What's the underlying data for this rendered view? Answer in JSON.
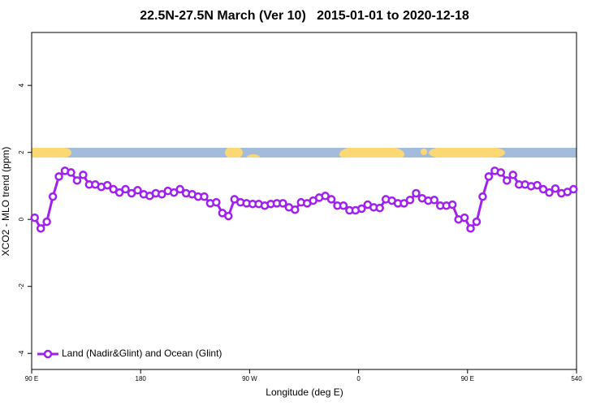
{
  "chart_data": {
    "type": "line",
    "title": "22.5N-27.5N March (Ver 10)   2015-01-01 to 2020-12-18",
    "xlabel": "Longitude (deg E)",
    "ylabel": "XCO2 - MLO trend (ppm)",
    "x": [
      92.5,
      97.5,
      102.5,
      107.5,
      112.5,
      117.5,
      122.5,
      127.5,
      132.5,
      137.5,
      142.5,
      147.5,
      152.5,
      157.5,
      162.5,
      167.5,
      172.5,
      177.5,
      182.5,
      187.5,
      192.5,
      197.5,
      202.5,
      207.5,
      212.5,
      217.5,
      222.5,
      227.5,
      232.5,
      237.5,
      242.5,
      247.5,
      252.5,
      257.5,
      262.5,
      267.5,
      272.5,
      277.5,
      282.5,
      287.5,
      292.5,
      297.5,
      302.5,
      307.5,
      312.5,
      317.5,
      322.5,
      327.5,
      332.5,
      337.5,
      342.5,
      347.5,
      352.5,
      357.5,
      362.5,
      367.5,
      372.5,
      377.5,
      382.5,
      387.5,
      392.5,
      397.5,
      402.5,
      407.5,
      412.5,
      417.5,
      422.5,
      427.5,
      432.5,
      437.5,
      442.5,
      447.5,
      452.5,
      457.5,
      462.5,
      467.5,
      472.5,
      477.5,
      482.5,
      487.5,
      492.5,
      497.5,
      502.5,
      507.5,
      512.5,
      517.5,
      522.5,
      527.5,
      532.5,
      537.5
    ],
    "series": [
      {
        "name": "Land (Nadir&Glint) and Ocean (Glint)",
        "color": "#a020f0",
        "values": [
          0.05,
          -0.27,
          -0.07,
          0.68,
          1.28,
          1.45,
          1.4,
          1.16,
          1.33,
          1.04,
          1.04,
          0.97,
          1.02,
          0.9,
          0.8,
          0.9,
          0.78,
          0.87,
          0.75,
          0.7,
          0.78,
          0.75,
          0.85,
          0.8,
          0.9,
          0.78,
          0.75,
          0.68,
          0.68,
          0.48,
          0.51,
          0.19,
          0.1,
          0.6,
          0.51,
          0.48,
          0.46,
          0.46,
          0.41,
          0.46,
          0.48,
          0.48,
          0.36,
          0.29,
          0.51,
          0.48,
          0.56,
          0.65,
          0.7,
          0.6,
          0.41,
          0.41,
          0.27,
          0.27,
          0.32,
          0.44,
          0.36,
          0.34,
          0.6,
          0.56,
          0.48,
          0.48,
          0.58,
          0.78,
          0.63,
          0.56,
          0.58,
          0.41,
          0.41,
          0.44,
          0.0,
          0.05,
          -0.27,
          -0.07,
          0.68,
          1.28,
          1.45,
          1.4,
          1.16,
          1.33,
          1.04,
          1.04,
          0.99,
          1.02,
          0.9,
          0.8,
          0.92,
          0.78,
          0.82,
          0.9
        ]
      }
    ],
    "xlim": [
      90,
      540
    ],
    "xticks": [
      {
        "value": 90,
        "label": "90 E"
      },
      180,
      {
        "value": 270,
        "label": "90 W"
      },
      {
        "value": 360,
        "label": "0"
      },
      {
        "value": 450,
        "label": "90 E"
      },
      540
    ],
    "ylim": [
      -4.48,
      5.58
    ],
    "yticks": [
      -4,
      -2,
      0,
      2,
      4
    ],
    "legend": "bottom-left"
  }
}
